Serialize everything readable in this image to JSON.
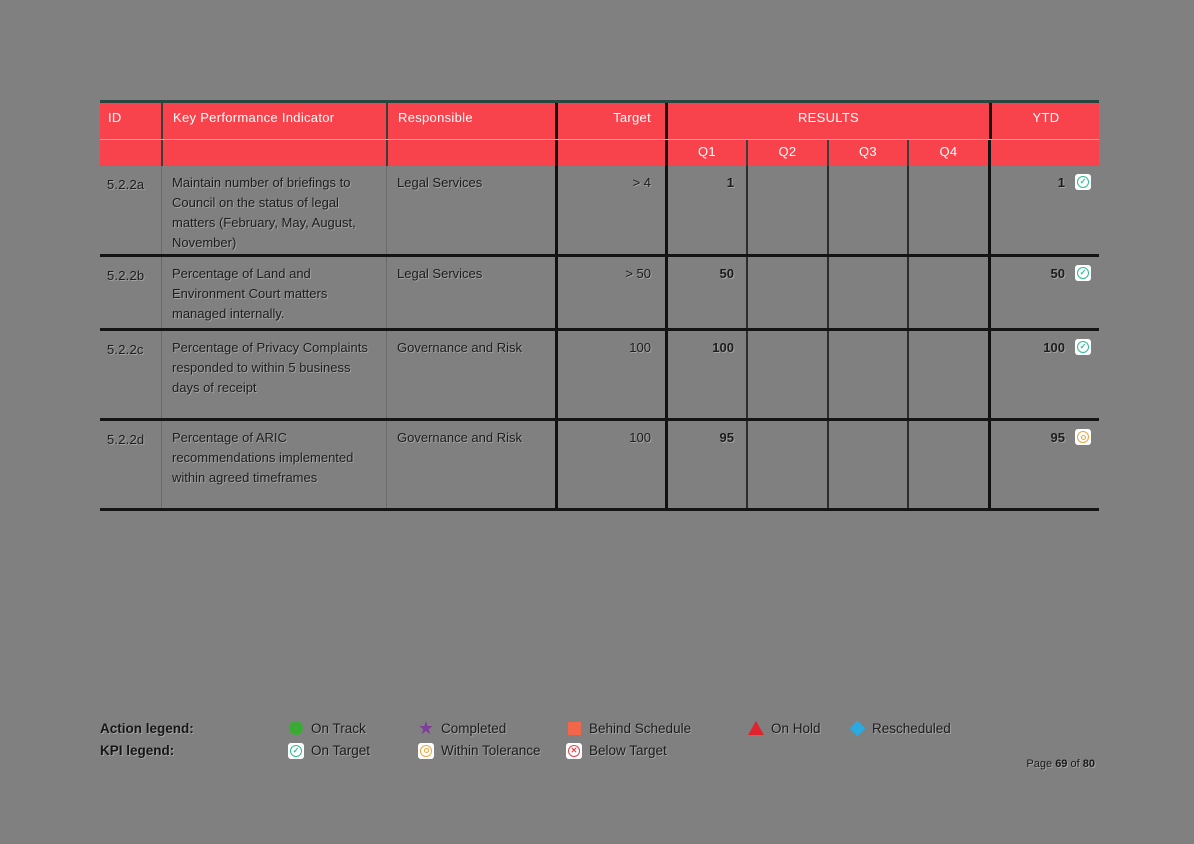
{
  "page": {
    "background": "#808080",
    "header_bg": "#F8434C",
    "header_text_color": "#FFFFFF",
    "table_top_border_color": "#27463F"
  },
  "table": {
    "header": {
      "id": "ID",
      "kpi": "Key Performance Indicator",
      "responsible": "Responsible",
      "target": "Target",
      "results": "RESULTS",
      "ytd": "YTD",
      "quarters": [
        "Q1",
        "Q2",
        "Q3",
        "Q4"
      ]
    },
    "rows": [
      {
        "id": "5.2.2a",
        "kpi": "Maintain number of briefings to Council on the status of legal matters (February, May, August, November)",
        "responsible": "Legal Services",
        "target": "> 4",
        "q1": "1",
        "q2": "",
        "q3": "",
        "q4": "",
        "ytd": "1",
        "ytd_status": "on-target"
      },
      {
        "id": "5.2.2b",
        "kpi": "Percentage of Land and Environment Court matters managed internally.",
        "responsible": "Legal Services",
        "target": "> 50",
        "q1": "50",
        "q2": "",
        "q3": "",
        "q4": "",
        "ytd": "50",
        "ytd_status": "on-target"
      },
      {
        "id": "5.2.2c",
        "kpi": "Percentage of Privacy Complaints responded to within 5 business days of receipt",
        "responsible": "Governance and Risk",
        "target": "100",
        "q1": "100",
        "q2": "",
        "q3": "",
        "q4": "",
        "ytd": "100",
        "ytd_status": "on-target"
      },
      {
        "id": "5.2.2d",
        "kpi": "Percentage of ARIC recommendations implemented within agreed timeframes",
        "responsible": "Governance and Risk",
        "target": "100",
        "q1": "95",
        "q2": "",
        "q3": "",
        "q4": "",
        "ytd": "95",
        "ytd_status": "within-tolerance"
      }
    ]
  },
  "legend": {
    "action": {
      "label": "Action legend:",
      "items": [
        {
          "name": "on-track",
          "label": "On Track",
          "shape": "circle",
          "color": "#3BAA35"
        },
        {
          "name": "completed",
          "label": "Completed",
          "shape": "star",
          "color": "#7D3F98"
        },
        {
          "name": "behind-schedule",
          "label": "Behind Schedule",
          "shape": "square",
          "color": "#F26649"
        },
        {
          "name": "on-hold",
          "label": "On Hold",
          "shape": "triangle",
          "color": "#E0232E"
        },
        {
          "name": "rescheduled",
          "label": "Rescheduled",
          "shape": "diamond",
          "color": "#29ABE2"
        }
      ]
    },
    "kpi": {
      "label": "KPI legend:",
      "items": [
        {
          "name": "on-target",
          "label": "On Target",
          "shape": "kpi",
          "status": "on-target",
          "color": "#2CBD92"
        },
        {
          "name": "within-tolerance",
          "label": "Within Tolerance",
          "shape": "kpi",
          "status": "within-tolerance",
          "color": "#F0A43C"
        },
        {
          "name": "below-target",
          "label": "Below Target",
          "shape": "kpi",
          "status": "below-target",
          "color": "#E4404A"
        }
      ]
    },
    "kpi_status_colors": {
      "on-target": "#2CBD92",
      "within-tolerance": "#F0A43C",
      "below-target": "#E4404A"
    }
  },
  "footer": {
    "label_page": "Page",
    "current": "69",
    "label_of": "of",
    "total": "80"
  }
}
